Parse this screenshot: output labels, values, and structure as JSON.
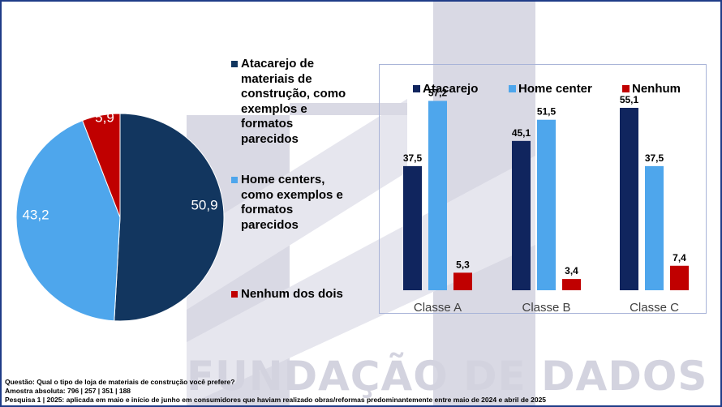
{
  "watermark": {
    "text": "FUNDAÇÃO DE DADOS"
  },
  "legend_left": [
    {
      "label": "Atacarejo de materiais de construção, como exemplos e formatos parecidos",
      "color": "#12365f"
    },
    {
      "label": "Home centers, como exemplos e formatos parecidos",
      "color": "#4ea6ec"
    },
    {
      "label": "Nenhum dos dois",
      "color": "#c00000"
    }
  ],
  "footer": {
    "question": "Questão: Qual o tipo de loja de materiais de construção você prefere?",
    "sample": "Amostra absoluta: 796 | 257 | 351 | 188",
    "survey": "Pesquisa 1 | 2025: aplicada em maio e início de junho em consumidores que haviam realizado obras/reformas predominantemente entre maio de 2024 e abril de 2025"
  },
  "chart_data": [
    {
      "type": "pie",
      "categories": [
        "Atacarejo de materiais de construção, como exemplos e formatos parecidos",
        "Home centers, como exemplos e formatos parecidos",
        "Nenhum dos dois"
      ],
      "values": [
        50.9,
        43.2,
        5.9
      ],
      "data_labels": [
        "50,9",
        "43,2",
        "5,9"
      ],
      "colors": [
        "#12365f",
        "#4ea6ec",
        "#c00000"
      ],
      "legend_position": "right"
    },
    {
      "type": "bar",
      "categories": [
        "Classe A",
        "Classe B",
        "Classe C"
      ],
      "series": [
        {
          "name": "Atacarejo",
          "values": [
            37.5,
            45.1,
            55.1
          ],
          "labels": [
            "37,5",
            "45,1",
            "55,1"
          ],
          "color": "#10255e"
        },
        {
          "name": "Home center",
          "values": [
            57.2,
            51.5,
            37.5
          ],
          "labels": [
            "57,2",
            "51,5",
            "37,5"
          ],
          "color": "#4ea6ec"
        },
        {
          "name": "Nenhum",
          "values": [
            5.3,
            3.4,
            7.4
          ],
          "labels": [
            "5,3",
            "3,4",
            "7,4"
          ],
          "color": "#c00000"
        }
      ],
      "ylim": [
        0,
        60
      ],
      "legend_position": "top",
      "grid": false
    }
  ]
}
